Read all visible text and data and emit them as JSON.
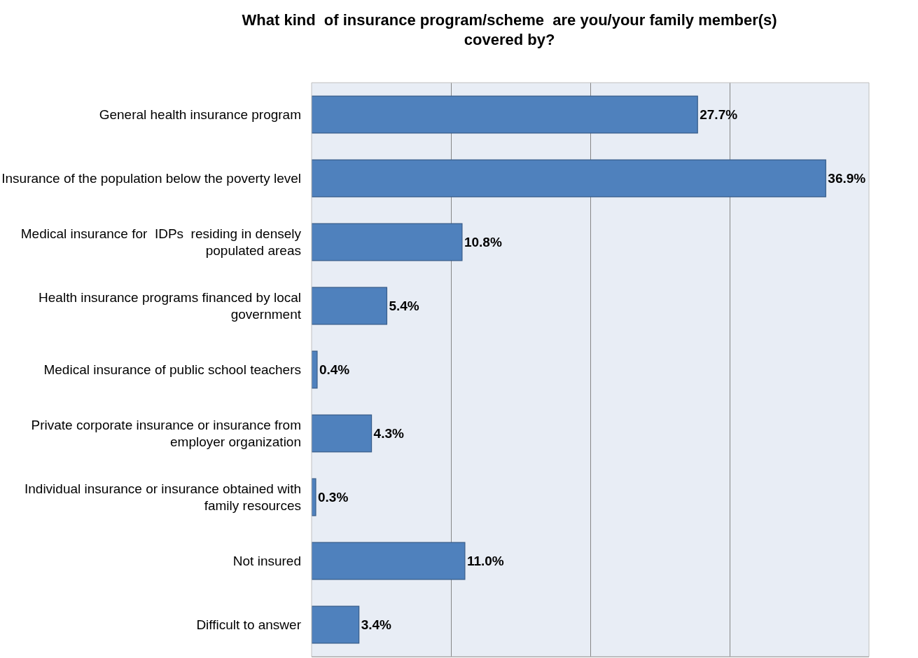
{
  "chart_data": {
    "type": "bar",
    "orientation": "horizontal",
    "title": "What kind  of insurance program/scheme  are you/your family member(s) covered by?",
    "categories": [
      "General health insurance program",
      "Insurance of the population below the poverty level",
      "Medical insurance for  IDPs  residing in densely populated areas",
      "Health insurance programs financed by local government",
      "Medical insurance of public school teachers",
      "Private corporate insurance or insurance from employer organization",
      "Individual insurance or insurance obtained with family resources",
      "Not insured",
      "Difficult to answer"
    ],
    "values": [
      27.7,
      36.9,
      10.8,
      5.4,
      0.4,
      4.3,
      0.3,
      11.0,
      3.4
    ],
    "value_labels": [
      "27.7%",
      "36.9%",
      "10.8%",
      "5.4%",
      "0.4%",
      "4.3%",
      "0.3%",
      "11.0%",
      "3.4%"
    ],
    "color": "#4f81bd",
    "xlim": [
      0,
      40
    ],
    "xticks": [
      {
        "value": 0,
        "label": null
      },
      {
        "value": 10,
        "label": null
      },
      {
        "value": 20,
        "label": null
      },
      {
        "value": 30,
        "label": null
      },
      {
        "value": 40,
        "label": null
      }
    ],
    "grid": "x",
    "tick_labels": "y"
  }
}
